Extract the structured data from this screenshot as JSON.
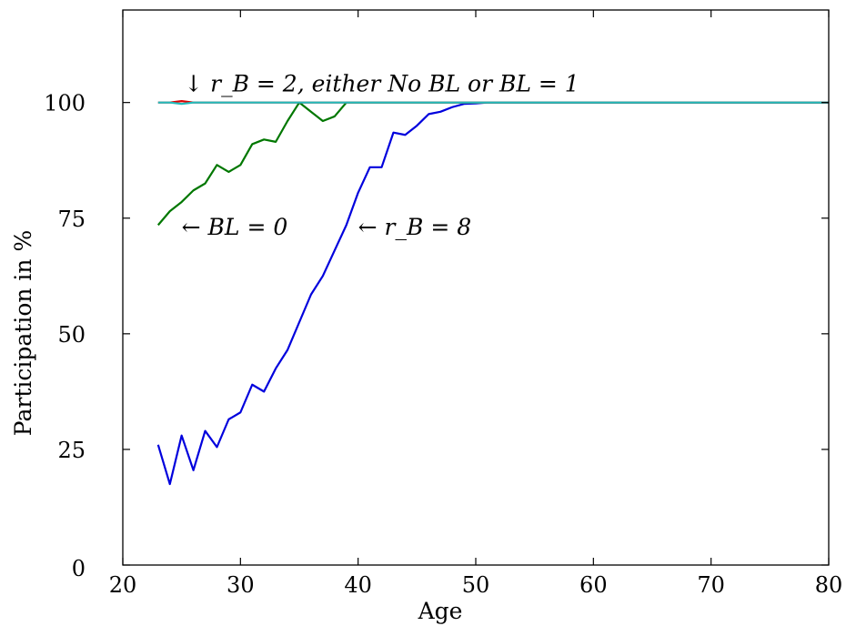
{
  "chart_data": {
    "type": "line",
    "title": "",
    "xlabel": "Age",
    "ylabel": "Participation in %",
    "xlim": [
      20,
      80
    ],
    "ylim": [
      0,
      120
    ],
    "xticks": [
      20,
      30,
      40,
      50,
      60,
      70,
      80
    ],
    "yticks": [
      0,
      25,
      50,
      75,
      100
    ],
    "grid": false,
    "series": [
      {
        "color": "#0000dd",
        "x": [
          23,
          24,
          25,
          26,
          27,
          28,
          29,
          30,
          31,
          32,
          33,
          34,
          35,
          36,
          37,
          38,
          39,
          40,
          41,
          42,
          43,
          44,
          45,
          46,
          47,
          48,
          49,
          50,
          51,
          52,
          53,
          54,
          55,
          56,
          57,
          58,
          59,
          60,
          61,
          62,
          63,
          64,
          65,
          66,
          67,
          68,
          69,
          70,
          71,
          72,
          73,
          74,
          75,
          76,
          77,
          78,
          79,
          80
        ],
        "y": [
          26,
          17.5,
          28,
          20.5,
          29,
          25.5,
          31.5,
          33,
          39,
          37.5,
          42.5,
          46.5,
          52.5,
          58.5,
          62.5,
          68,
          73.5,
          80.5,
          86,
          86,
          93.5,
          93,
          95,
          97.5,
          98,
          99,
          99.7,
          99.8,
          100,
          100,
          100,
          100,
          100,
          100,
          100,
          100,
          100,
          100,
          100,
          100,
          100,
          100,
          100,
          100,
          100,
          100,
          100,
          100,
          100,
          100,
          100,
          100,
          100,
          100,
          100,
          100,
          100,
          100
        ]
      },
      {
        "color": "#007700",
        "x": [
          23,
          24,
          25,
          26,
          27,
          28,
          29,
          30,
          31,
          32,
          33,
          34,
          35,
          36,
          37,
          38,
          39,
          40,
          41,
          42,
          43,
          44,
          45,
          46,
          47,
          48,
          49,
          50,
          51,
          52,
          53,
          54,
          55,
          56,
          57,
          58,
          59,
          60,
          61,
          62,
          63,
          64,
          65,
          66,
          67,
          68,
          69,
          70,
          71,
          72,
          73,
          74,
          75,
          76,
          77,
          78,
          79,
          80
        ],
        "y": [
          73.5,
          76.5,
          78.5,
          81,
          82.5,
          86.5,
          85,
          86.5,
          91,
          92,
          91.5,
          96,
          100,
          98,
          96,
          97,
          100,
          100,
          100,
          100,
          100,
          100,
          100,
          100,
          100,
          100,
          100,
          100,
          100,
          100,
          100,
          100,
          100,
          100,
          100,
          100,
          100,
          100,
          100,
          100,
          100,
          100,
          100,
          100,
          100,
          100,
          100,
          100,
          100,
          100,
          100,
          100,
          100,
          100,
          100,
          100,
          100,
          100
        ]
      },
      {
        "color": "#dd0000",
        "x": [
          23,
          24,
          25,
          26,
          27,
          80
        ],
        "y": [
          100,
          100,
          100.3,
          100,
          100,
          100
        ]
      },
      {
        "color": "#22bbbb",
        "x": [
          23,
          24,
          25,
          26,
          27,
          80
        ],
        "y": [
          100,
          100,
          99.7,
          100,
          100,
          100
        ]
      }
    ],
    "annotations": [
      {
        "text": "↓ r_B = 2, either No BL or BL = 1",
        "x": 25.2,
        "y": 104
      },
      {
        "text": "← BL = 0",
        "x": 25,
        "y": 73
      },
      {
        "text": "← r_B = 8",
        "x": 40,
        "y": 73
      }
    ]
  }
}
